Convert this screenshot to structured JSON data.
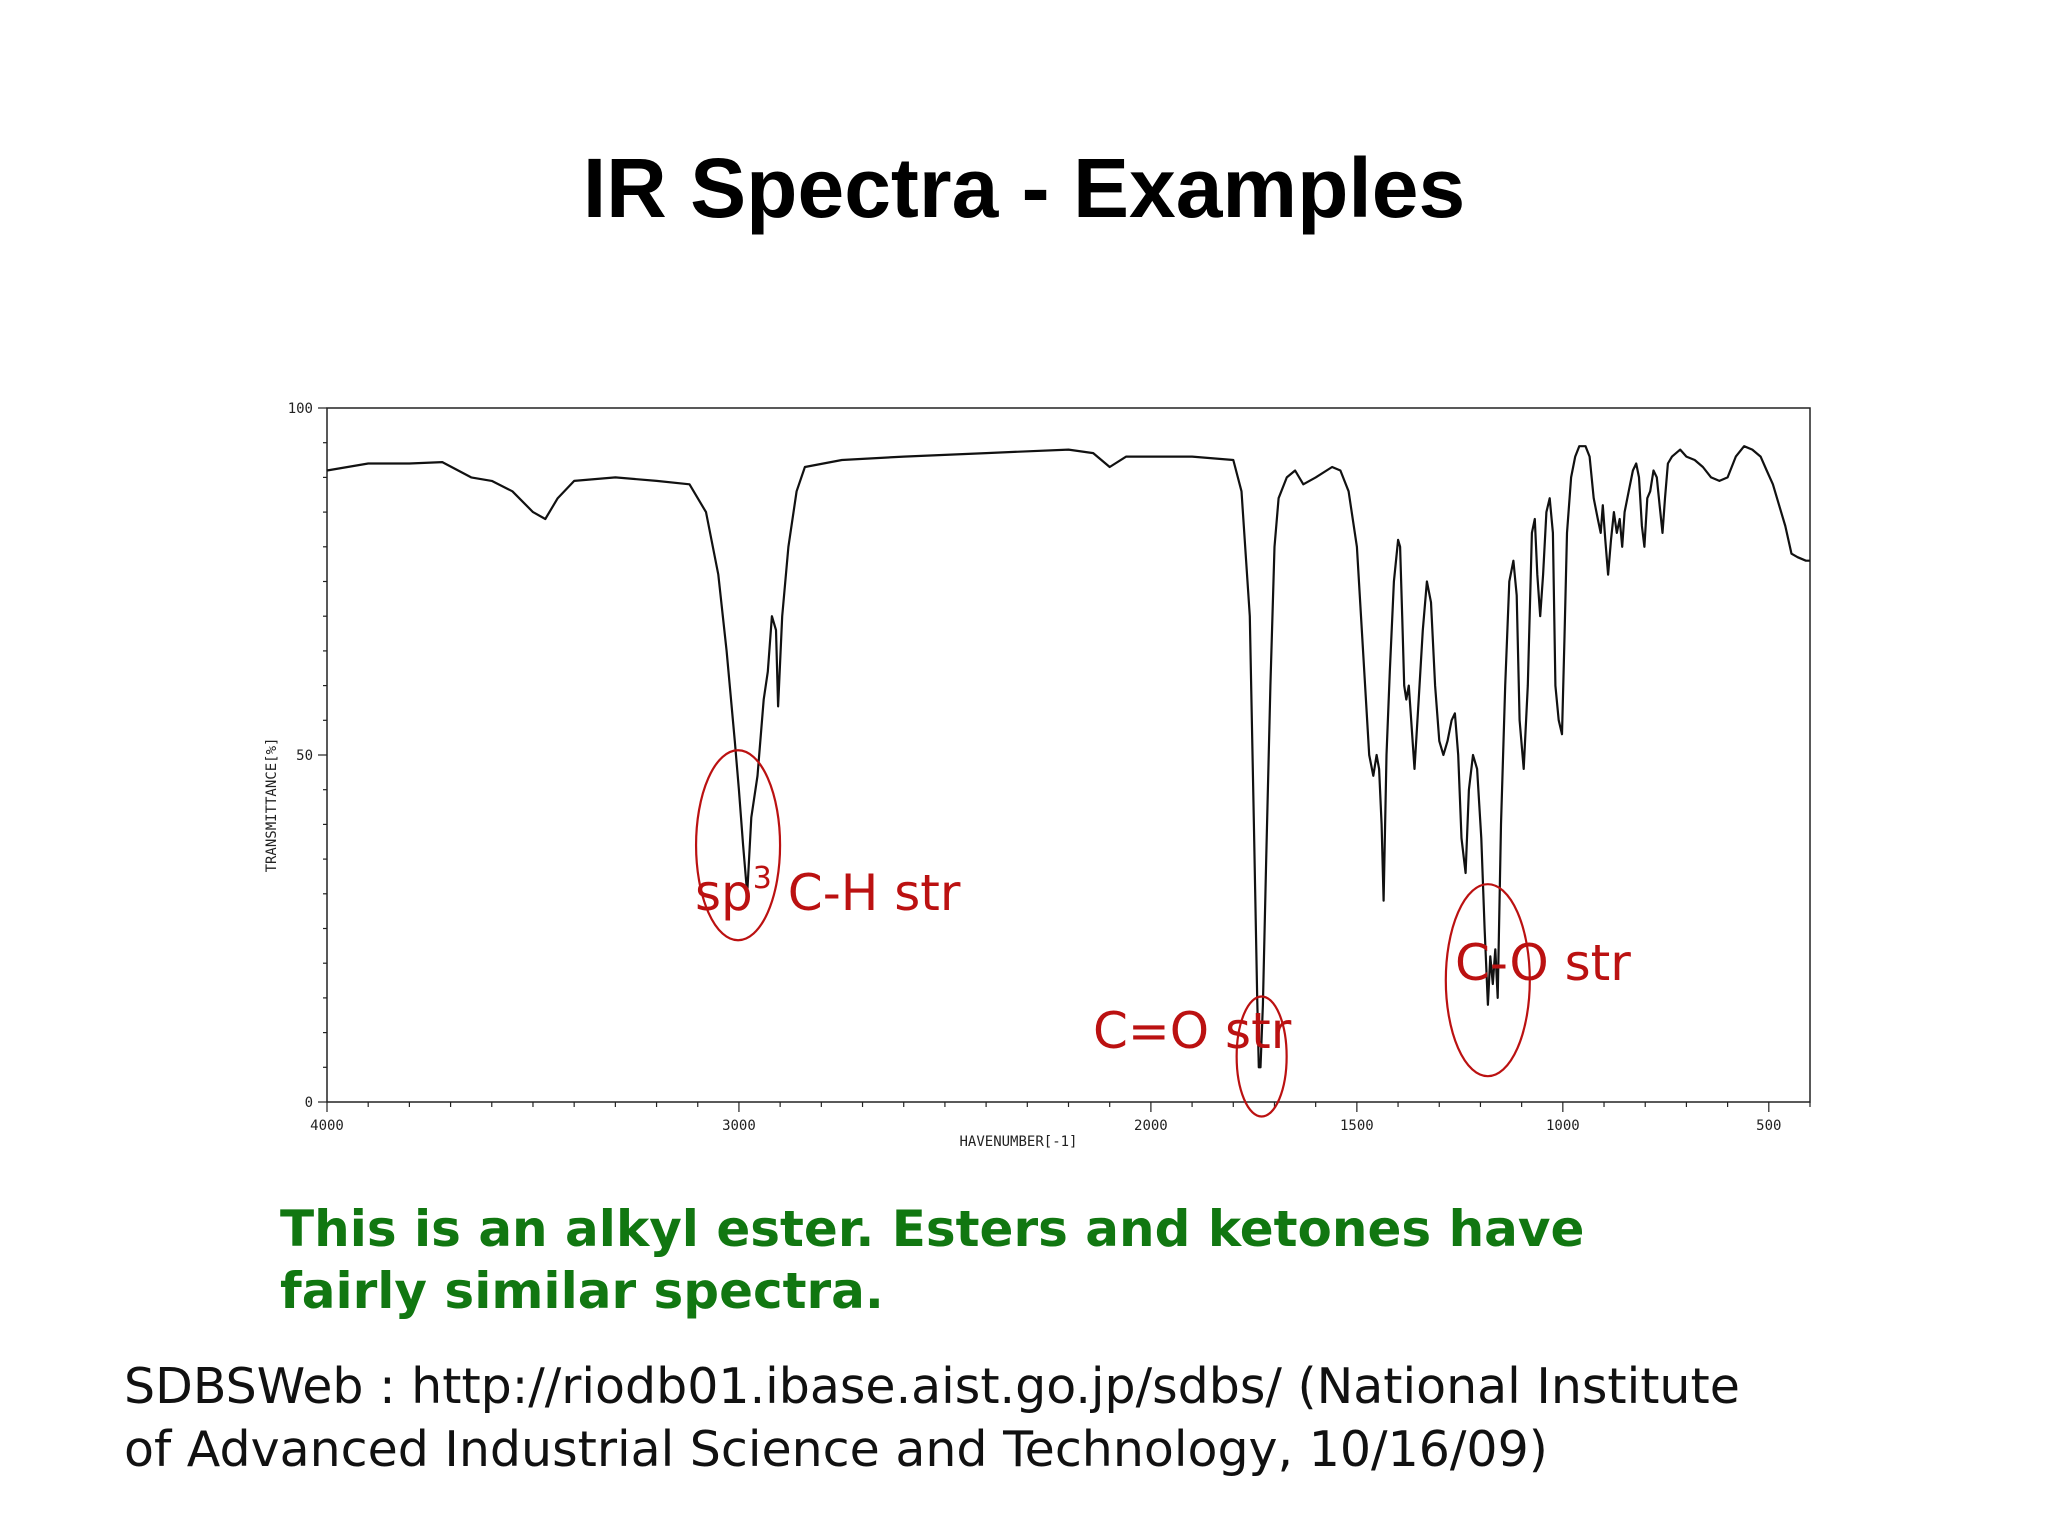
{
  "slide": {
    "title": "IR Spectra - Examples",
    "caption_line1": "This is an alkyl ester.  Esters and ketones have",
    "caption_line2": "fairly similar spectra.",
    "citation_line1": "SDBSWeb : http://riodb01.ibase.aist.go.jp/sdbs/ (National Institute",
    "citation_line2": "of Advanced Industrial Science and Technology, 10/16/09)"
  },
  "colors": {
    "title": "#000000",
    "caption": "#117711",
    "annotation": "#bb1111",
    "trace": "#111111"
  },
  "chart_data": {
    "type": "line",
    "title": "",
    "xlabel": "HAVENUMBER[-1]",
    "ylabel": "TRANSMITTANCE[%]",
    "x_reversed": true,
    "xlim": [
      4000,
      400
    ],
    "ylim": [
      0,
      100
    ],
    "x_ticks": [
      {
        "value": 4000,
        "label": "4000"
      },
      {
        "value": 3000,
        "label": "3000"
      },
      {
        "value": 2000,
        "label": "2000"
      },
      {
        "value": 1500,
        "label": "1500"
      },
      {
        "value": 1000,
        "label": "1000"
      },
      {
        "value": 500,
        "label": "500"
      }
    ],
    "y_ticks": [
      {
        "value": 0,
        "label": "0"
      },
      {
        "value": 50,
        "label": "50"
      },
      {
        "value": 100,
        "label": "100"
      }
    ],
    "grid": false,
    "series": [
      {
        "points": [
          [
            4000,
            91
          ],
          [
            3900,
            92
          ],
          [
            3800,
            92
          ],
          [
            3720,
            92.2
          ],
          [
            3650,
            90
          ],
          [
            3600,
            89.5
          ],
          [
            3550,
            88
          ],
          [
            3500,
            85
          ],
          [
            3470,
            84
          ],
          [
            3440,
            87
          ],
          [
            3400,
            89.5
          ],
          [
            3300,
            90
          ],
          [
            3200,
            89.5
          ],
          [
            3120,
            89
          ],
          [
            3080,
            85
          ],
          [
            3050,
            76
          ],
          [
            3030,
            65
          ],
          [
            3010,
            52
          ],
          [
            3000,
            45
          ],
          [
            2990,
            37
          ],
          [
            2980,
            30
          ],
          [
            2970,
            41
          ],
          [
            2955,
            47
          ],
          [
            2940,
            58
          ],
          [
            2930,
            62
          ],
          [
            2920,
            70
          ],
          [
            2910,
            68
          ],
          [
            2905,
            57
          ],
          [
            2895,
            70
          ],
          [
            2880,
            80
          ],
          [
            2860,
            88
          ],
          [
            2840,
            91.5
          ],
          [
            2750,
            92.5
          ],
          [
            2600,
            93
          ],
          [
            2400,
            93.5
          ],
          [
            2200,
            94
          ],
          [
            2140,
            93.5
          ],
          [
            2100,
            91.5
          ],
          [
            2060,
            93
          ],
          [
            2000,
            93
          ],
          [
            1900,
            93
          ],
          [
            1800,
            92.5
          ],
          [
            1780,
            88
          ],
          [
            1760,
            70
          ],
          [
            1750,
            40
          ],
          [
            1742,
            15
          ],
          [
            1738,
            5
          ],
          [
            1734,
            5
          ],
          [
            1728,
            14
          ],
          [
            1720,
            35
          ],
          [
            1710,
            60
          ],
          [
            1700,
            80
          ],
          [
            1690,
            87
          ],
          [
            1670,
            90
          ],
          [
            1650,
            91
          ],
          [
            1630,
            89
          ],
          [
            1600,
            90
          ],
          [
            1560,
            91.5
          ],
          [
            1540,
            91
          ],
          [
            1520,
            88
          ],
          [
            1500,
            80
          ],
          [
            1480,
            60
          ],
          [
            1470,
            50
          ],
          [
            1460,
            47
          ],
          [
            1452,
            50
          ],
          [
            1446,
            48
          ],
          [
            1440,
            40
          ],
          [
            1435,
            29
          ],
          [
            1428,
            50
          ],
          [
            1420,
            62
          ],
          [
            1410,
            75
          ],
          [
            1400,
            81
          ],
          [
            1395,
            80
          ],
          [
            1390,
            70
          ],
          [
            1385,
            60
          ],
          [
            1380,
            58
          ],
          [
            1374,
            60
          ],
          [
            1368,
            55
          ],
          [
            1360,
            48
          ],
          [
            1350,
            58
          ],
          [
            1340,
            68
          ],
          [
            1330,
            75
          ],
          [
            1320,
            72
          ],
          [
            1310,
            60
          ],
          [
            1300,
            52
          ],
          [
            1290,
            50
          ],
          [
            1280,
            52
          ],
          [
            1270,
            55
          ],
          [
            1262,
            56
          ],
          [
            1254,
            50
          ],
          [
            1246,
            38
          ],
          [
            1236,
            33
          ],
          [
            1228,
            45
          ],
          [
            1218,
            50
          ],
          [
            1208,
            48
          ],
          [
            1198,
            38
          ],
          [
            1190,
            25
          ],
          [
            1182,
            14
          ],
          [
            1176,
            21
          ],
          [
            1170,
            17
          ],
          [
            1164,
            22
          ],
          [
            1158,
            15
          ],
          [
            1150,
            40
          ],
          [
            1140,
            60
          ],
          [
            1130,
            75
          ],
          [
            1120,
            78
          ],
          [
            1112,
            73
          ],
          [
            1105,
            55
          ],
          [
            1095,
            48
          ],
          [
            1085,
            60
          ],
          [
            1075,
            82
          ],
          [
            1068,
            84
          ],
          [
            1062,
            76
          ],
          [
            1055,
            70
          ],
          [
            1048,
            76
          ],
          [
            1040,
            85
          ],
          [
            1032,
            87
          ],
          [
            1024,
            82
          ],
          [
            1018,
            60
          ],
          [
            1010,
            55
          ],
          [
            1002,
            53
          ],
          [
            996,
            67
          ],
          [
            990,
            82
          ],
          [
            980,
            90
          ],
          [
            970,
            93
          ],
          [
            960,
            94.5
          ],
          [
            945,
            94.5
          ],
          [
            935,
            93
          ],
          [
            925,
            87
          ],
          [
            915,
            84
          ],
          [
            908,
            82
          ],
          [
            903,
            86
          ],
          [
            897,
            81
          ],
          [
            890,
            76
          ],
          [
            883,
            81
          ],
          [
            876,
            85
          ],
          [
            869,
            82
          ],
          [
            862,
            84
          ],
          [
            856,
            80
          ],
          [
            850,
            85
          ],
          [
            840,
            88
          ],
          [
            830,
            91
          ],
          [
            822,
            92
          ],
          [
            815,
            90
          ],
          [
            808,
            83
          ],
          [
            802,
            80
          ],
          [
            795,
            87
          ],
          [
            788,
            88
          ],
          [
            780,
            91
          ],
          [
            772,
            90
          ],
          [
            765,
            86
          ],
          [
            758,
            82
          ],
          [
            752,
            87
          ],
          [
            745,
            92
          ],
          [
            735,
            93
          ],
          [
            725,
            93.5
          ],
          [
            715,
            94
          ],
          [
            700,
            93
          ],
          [
            680,
            92.5
          ],
          [
            660,
            91.5
          ],
          [
            640,
            90
          ],
          [
            620,
            89.5
          ],
          [
            600,
            90
          ],
          [
            580,
            93
          ],
          [
            560,
            94.5
          ],
          [
            540,
            94
          ],
          [
            520,
            93
          ],
          [
            505,
            91
          ],
          [
            490,
            89
          ],
          [
            475,
            86
          ],
          [
            460,
            83
          ],
          [
            445,
            79
          ],
          [
            430,
            78.5
          ],
          [
            410,
            78
          ],
          [
            400,
            78
          ]
        ]
      }
    ],
    "annotations": [
      {
        "label": "sp",
        "superscript": "3",
        "label_rest": " C-H str",
        "x": 2990,
        "y": 37
      },
      {
        "label": "C=O str",
        "x": 1736,
        "y": 8
      },
      {
        "label": "C-O str",
        "x": 1170,
        "y": 20
      }
    ]
  }
}
